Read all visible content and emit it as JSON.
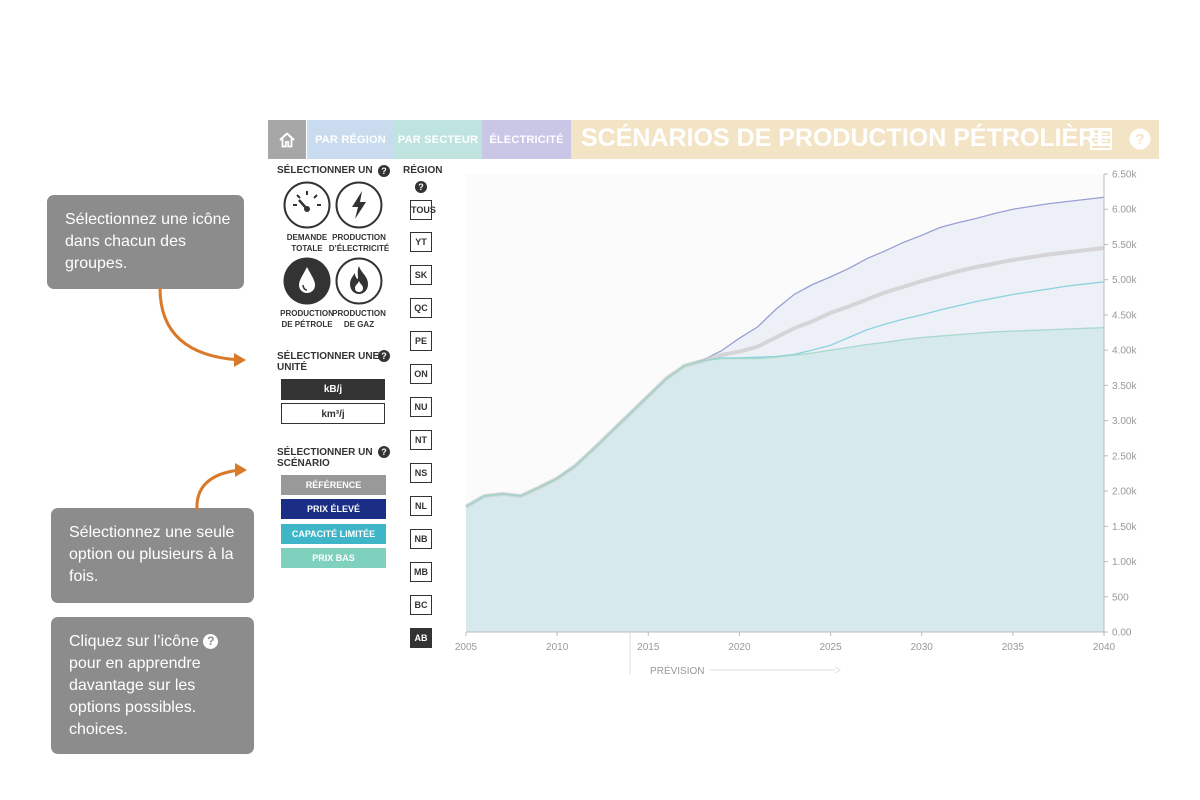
{
  "nav": {
    "home_icon": "home-icon",
    "tabs": [
      {
        "label": "PAR RÉGION",
        "color": "#c9dcef"
      },
      {
        "label": "PAR SECTEUR",
        "color": "#bfe3df"
      },
      {
        "label": "ÉLECTRICITÉ",
        "color": "#c9c6e6"
      }
    ],
    "title": "SCÉNARIOS DE PRODUCTION PÉTROLIÈRE",
    "title_bg": "#f3e4c6",
    "list_icon": "list-icon",
    "help_icon": "help-icon"
  },
  "notes": {
    "note1": "Sélectionnez une icône dans chacun des groupes.",
    "note2": "Sélectionnez une seule option ou plusieurs à la fois.",
    "note3_before": "Cliquez sur l’icône",
    "note3_after": "pour en apprendre davantage sur les options possibles. choices.",
    "note_color": "#8c8c8c",
    "arrow_color": "#d97a2b"
  },
  "sidebar": {
    "select_one": "SÉLECTIONNER UN",
    "help_glyph": "?",
    "icons": [
      {
        "name": "gauge-icon",
        "label1": "DEMANDE",
        "label2": "TOTALE",
        "selected": false
      },
      {
        "name": "lightning-icon",
        "label1": "PRODUCTION",
        "label2": "D’ÉLECTRICITÉ",
        "selected": false
      },
      {
        "name": "oil-drop-icon",
        "label1": "PRODUCTION",
        "label2": "DE PÉTROLE",
        "selected": true
      },
      {
        "name": "gas-flame-icon",
        "label1": "PRODUCTION",
        "label2": "DE GAZ",
        "selected": false
      }
    ],
    "unit_title1": "SÉLECTIONNER UNE",
    "unit_title2": "UNITÉ",
    "units": [
      {
        "label": "kB/j",
        "selected": true
      },
      {
        "label": "km³/j",
        "selected": false
      }
    ],
    "scenario_title1": "SÉLECTIONNER UN",
    "scenario_title2": "SCÉNARIO",
    "scenarios": [
      {
        "label": "RÉFÉRENCE",
        "color": "#999999"
      },
      {
        "label": "PRIX ÉLEVÉ",
        "color": "#1a2e85"
      },
      {
        "label": "CAPACITÉ LIMITÉE",
        "color": "#3fb6c8"
      },
      {
        "label": "PRIX BAS",
        "color": "#7fd1bd"
      }
    ],
    "region_title": "RÉGION",
    "regions": [
      {
        "label": "TOUS",
        "selected": false
      },
      {
        "label": "YT",
        "selected": false
      },
      {
        "label": "SK",
        "selected": false
      },
      {
        "label": "QC",
        "selected": false
      },
      {
        "label": "PE",
        "selected": false
      },
      {
        "label": "ON",
        "selected": false
      },
      {
        "label": "NU",
        "selected": false
      },
      {
        "label": "NT",
        "selected": false
      },
      {
        "label": "NS",
        "selected": false
      },
      {
        "label": "NL",
        "selected": false
      },
      {
        "label": "NB",
        "selected": false
      },
      {
        "label": "MB",
        "selected": false
      },
      {
        "label": "BC",
        "selected": false
      },
      {
        "label": "AB",
        "selected": true
      }
    ]
  },
  "chart_data": {
    "type": "area",
    "x_ticks": [
      "2005",
      "2010",
      "2015",
      "2020",
      "2025",
      "2030",
      "2035",
      "2040"
    ],
    "y_ticks": [
      "0.00",
      "500",
      "1.00k",
      "1.50k",
      "2.00k",
      "2.50k",
      "3.00k",
      "3.50k",
      "4.00k",
      "4.50k",
      "5.00k",
      "5.50k",
      "6.00k",
      "6.50k"
    ],
    "xlim": [
      2005,
      2040
    ],
    "ylim": [
      0,
      6500
    ],
    "forecast_label": "PRÉVISION",
    "forecast_start": 2014,
    "series": [
      {
        "color": "#8e97cf",
        "x": [
          2005,
          2006,
          2007,
          2008,
          2009,
          2010,
          2011,
          2012,
          2013,
          2014,
          2015,
          2016,
          2017,
          2018,
          2019,
          2020,
          2021,
          2022,
          2023,
          2024,
          2025,
          2026,
          2027,
          2028,
          2029,
          2030,
          2031,
          2032,
          2033,
          2034,
          2035,
          2036,
          2037,
          2038,
          2039,
          2040
        ],
        "values": [
          1780,
          1930,
          1960,
          1930,
          2050,
          2180,
          2360,
          2600,
          2850,
          3100,
          3350,
          3600,
          3780,
          3860,
          3990,
          4170,
          4330,
          4580,
          4790,
          4930,
          5040,
          5160,
          5300,
          5410,
          5530,
          5630,
          5740,
          5810,
          5870,
          5940,
          6000,
          6040,
          6080,
          6110,
          6140,
          6170
        ]
      },
      {
        "color": "#cccccc",
        "x": [
          2005,
          2006,
          2007,
          2008,
          2009,
          2010,
          2011,
          2012,
          2013,
          2014,
          2015,
          2016,
          2017,
          2018,
          2019,
          2020,
          2021,
          2022,
          2023,
          2024,
          2025,
          2026,
          2027,
          2028,
          2029,
          2030,
          2031,
          2032,
          2033,
          2034,
          2035,
          2036,
          2037,
          2038,
          2039,
          2040
        ],
        "values": [
          1780,
          1930,
          1960,
          1930,
          2050,
          2180,
          2360,
          2600,
          2850,
          3100,
          3350,
          3600,
          3780,
          3850,
          3930,
          3980,
          4050,
          4180,
          4310,
          4410,
          4530,
          4620,
          4720,
          4820,
          4900,
          4980,
          5050,
          5120,
          5180,
          5230,
          5280,
          5320,
          5360,
          5390,
          5420,
          5450
        ]
      },
      {
        "color": "#7fcfdc",
        "x": [
          2005,
          2006,
          2007,
          2008,
          2009,
          2010,
          2011,
          2012,
          2013,
          2014,
          2015,
          2016,
          2017,
          2018,
          2019,
          2020,
          2021,
          2022,
          2023,
          2024,
          2025,
          2026,
          2027,
          2028,
          2029,
          2030,
          2031,
          2032,
          2033,
          2034,
          2035,
          2036,
          2037,
          2038,
          2039,
          2040
        ],
        "values": [
          1780,
          1930,
          1960,
          1930,
          2050,
          2180,
          2360,
          2600,
          2850,
          3100,
          3350,
          3600,
          3780,
          3850,
          3890,
          3890,
          3900,
          3910,
          3940,
          4000,
          4070,
          4180,
          4290,
          4370,
          4440,
          4500,
          4570,
          4630,
          4690,
          4740,
          4790,
          4830,
          4870,
          4910,
          4940,
          4970
        ]
      },
      {
        "color": "#a3d6c8",
        "x": [
          2005,
          2006,
          2007,
          2008,
          2009,
          2010,
          2011,
          2012,
          2013,
          2014,
          2015,
          2016,
          2017,
          2018,
          2019,
          2020,
          2021,
          2022,
          2023,
          2024,
          2025,
          2026,
          2027,
          2028,
          2029,
          2030,
          2031,
          2032,
          2033,
          2034,
          2035,
          2036,
          2037,
          2038,
          2039,
          2040
        ],
        "values": [
          1780,
          1930,
          1960,
          1930,
          2050,
          2180,
          2360,
          2600,
          2850,
          3100,
          3350,
          3600,
          3780,
          3850,
          3880,
          3880,
          3880,
          3900,
          3930,
          3960,
          4000,
          4040,
          4080,
          4110,
          4150,
          4180,
          4200,
          4220,
          4240,
          4260,
          4270,
          4280,
          4290,
          4300,
          4310,
          4320
        ]
      }
    ]
  }
}
